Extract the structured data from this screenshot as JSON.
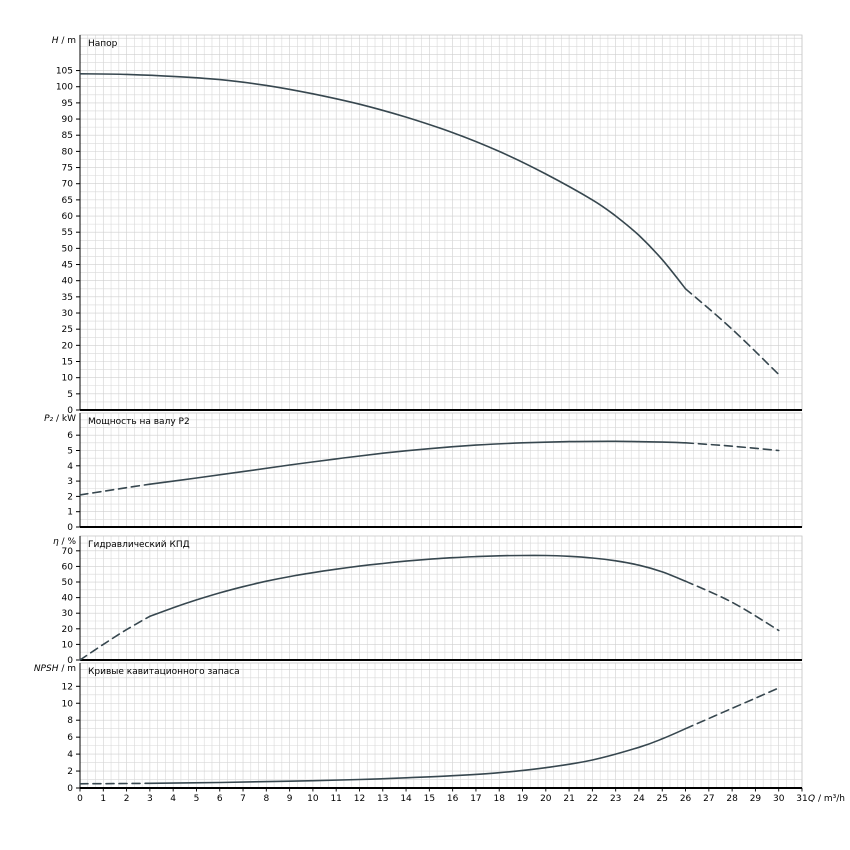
{
  "style": {
    "background": "#ffffff",
    "curve_color": "#37474f",
    "grid_color": "#d9d9d9",
    "grid_major_color": "#cfcfcf",
    "axis_color": "#000000",
    "border_color": "#c8c8c8",
    "text_color": "#000000"
  },
  "x_axis": {
    "label": "Q / m³/h",
    "min": 0,
    "max": 31,
    "tick_step": 1,
    "tick_labels": [
      "0",
      "1",
      "2",
      "3",
      "4",
      "5",
      "6",
      "7",
      "8",
      "9",
      "10",
      "11",
      "12",
      "13",
      "14",
      "15",
      "16",
      "17",
      "18",
      "19",
      "20",
      "21",
      "22",
      "23",
      "24",
      "25",
      "26",
      "27",
      "28",
      "29",
      "30",
      "31"
    ]
  },
  "chart_data": [
    {
      "type": "line",
      "name": "head",
      "title": "Напор",
      "ylabel": "H / m",
      "ylim": [
        0,
        116
      ],
      "ytick_max": 105,
      "ytick_step": 5,
      "grid": true,
      "series": [
        {
          "name": "head-curve",
          "style": "solid",
          "points": [
            [
              0,
              104
            ],
            [
              2,
              103.8
            ],
            [
              4,
              103.2
            ],
            [
              6,
              102.2
            ],
            [
              8,
              100.4
            ],
            [
              10,
              97.8
            ],
            [
              12,
              94.6
            ],
            [
              14,
              90.6
            ],
            [
              16,
              85.8
            ],
            [
              18,
              80
            ],
            [
              20,
              73
            ],
            [
              22,
              65
            ],
            [
              23,
              60
            ],
            [
              24,
              54
            ],
            [
              25,
              46.5
            ],
            [
              26,
              37.5
            ]
          ]
        },
        {
          "name": "head-curve-extrapolated",
          "style": "dashed",
          "points": [
            [
              26,
              37.5
            ],
            [
              28,
              25
            ],
            [
              30,
              11
            ]
          ]
        }
      ]
    },
    {
      "type": "line",
      "name": "shaft-power",
      "title": "Мощность на валу P2",
      "ylabel": "P₂ / kW",
      "ylim": [
        0,
        7.45
      ],
      "ytick_max": 6,
      "ytick_step": 1,
      "grid": true,
      "series": [
        {
          "name": "power-extrapolated-left",
          "style": "dashed",
          "points": [
            [
              0,
              2.1
            ],
            [
              1,
              2.33
            ],
            [
              2,
              2.57
            ],
            [
              3,
              2.8
            ]
          ]
        },
        {
          "name": "power-curve",
          "style": "solid",
          "points": [
            [
              3,
              2.8
            ],
            [
              5,
              3.2
            ],
            [
              7,
              3.62
            ],
            [
              9,
              4.05
            ],
            [
              11,
              4.45
            ],
            [
              13,
              4.82
            ],
            [
              15,
              5.12
            ],
            [
              17,
              5.35
            ],
            [
              19,
              5.5
            ],
            [
              21,
              5.58
            ],
            [
              23,
              5.6
            ],
            [
              25,
              5.55
            ],
            [
              26,
              5.5
            ]
          ]
        },
        {
          "name": "power-extrapolated-right",
          "style": "dashed",
          "points": [
            [
              26,
              5.5
            ],
            [
              28,
              5.28
            ],
            [
              30,
              5.0
            ]
          ]
        }
      ]
    },
    {
      "type": "line",
      "name": "efficiency",
      "title": "Гидравлический КПД",
      "ylabel": "η / %",
      "ylim": [
        0,
        79.5
      ],
      "ytick_max": 70,
      "ytick_step": 10,
      "grid": true,
      "series": [
        {
          "name": "efficiency-extrapolated-left",
          "style": "dashed",
          "points": [
            [
              0,
              0
            ],
            [
              1,
              10
            ],
            [
              2,
              19.5
            ],
            [
              3,
              28
            ]
          ]
        },
        {
          "name": "efficiency-curve",
          "style": "solid",
          "points": [
            [
              3,
              28
            ],
            [
              4,
              33.5
            ],
            [
              5,
              38.5
            ],
            [
              6,
              43
            ],
            [
              7,
              47
            ],
            [
              8,
              50.5
            ],
            [
              9,
              53.5
            ],
            [
              10,
              56
            ],
            [
              11,
              58.2
            ],
            [
              12,
              60.2
            ],
            [
              13,
              61.9
            ],
            [
              14,
              63.4
            ],
            [
              15,
              64.6
            ],
            [
              16,
              65.6
            ],
            [
              17,
              66.3
            ],
            [
              18,
              66.8
            ],
            [
              19,
              67
            ],
            [
              20,
              67
            ],
            [
              21,
              66.5
            ],
            [
              22,
              65.4
            ],
            [
              23,
              63.6
            ],
            [
              24,
              60.8
            ],
            [
              25,
              56.5
            ],
            [
              26,
              50.5
            ]
          ]
        },
        {
          "name": "efficiency-extrapolated-right",
          "style": "dashed",
          "points": [
            [
              26,
              50.5
            ],
            [
              28,
              37
            ],
            [
              30,
              19
            ]
          ]
        }
      ]
    },
    {
      "type": "line",
      "name": "npsh",
      "title": "Кривые кавитационного запаса",
      "ylabel": "NPSH / m",
      "ylim": [
        0,
        14.75
      ],
      "ytick_max": 12,
      "ytick_step": 2,
      "grid": true,
      "series": [
        {
          "name": "npsh-extrapolated-left",
          "style": "dashed",
          "points": [
            [
              0,
              0.5
            ],
            [
              1.5,
              0.52
            ],
            [
              3,
              0.55
            ]
          ]
        },
        {
          "name": "npsh-curve",
          "style": "solid",
          "points": [
            [
              3,
              0.55
            ],
            [
              6,
              0.65
            ],
            [
              9,
              0.8
            ],
            [
              12,
              1.0
            ],
            [
              14,
              1.2
            ],
            [
              16,
              1.45
            ],
            [
              18,
              1.8
            ],
            [
              20,
              2.4
            ],
            [
              22,
              3.3
            ],
            [
              24,
              4.8
            ],
            [
              25,
              5.8
            ],
            [
              26,
              7.0
            ]
          ]
        },
        {
          "name": "npsh-extrapolated-right",
          "style": "dashed",
          "points": [
            [
              26,
              7.0
            ],
            [
              28,
              9.4
            ],
            [
              30,
              11.8
            ]
          ]
        }
      ]
    }
  ]
}
